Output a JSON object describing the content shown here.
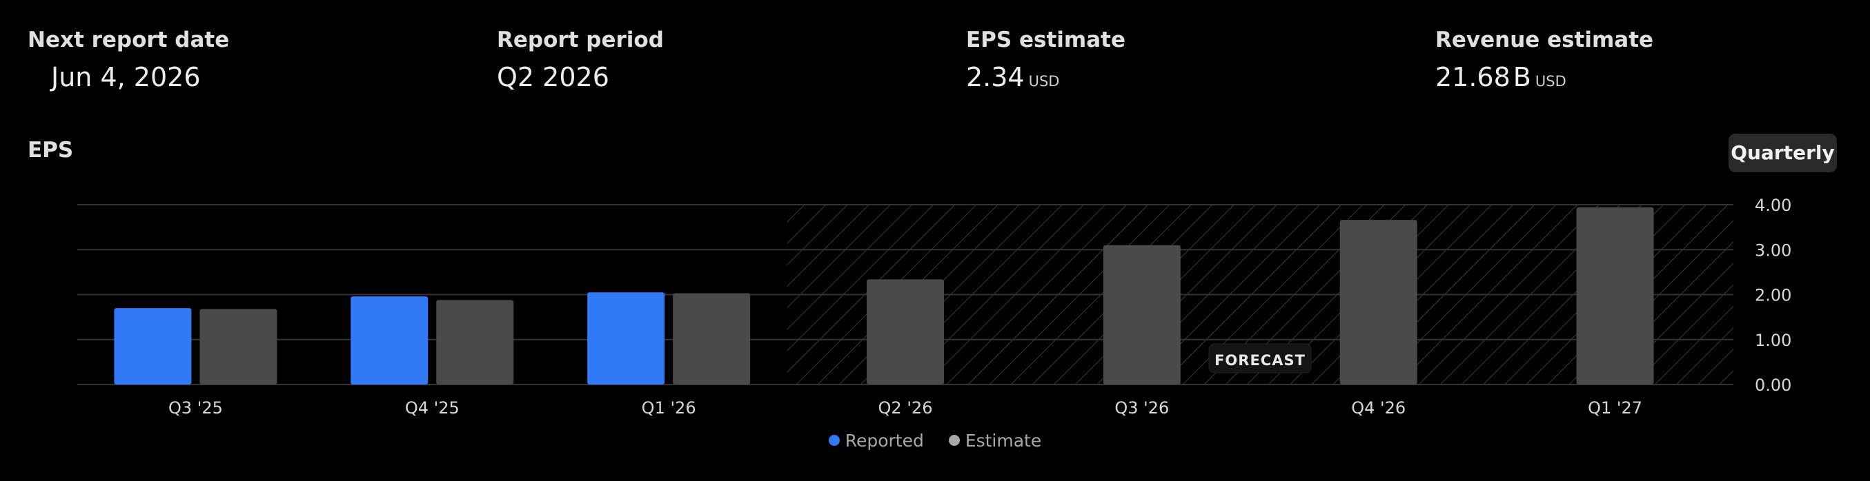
{
  "stats": [
    {
      "label": "Next report date",
      "value": "Jun 4, 2026"
    },
    {
      "label": "Report period",
      "value": "Q2 2026"
    },
    {
      "label": "EPS estimate",
      "value": "2.34",
      "unit": "USD"
    },
    {
      "label": "Revenue estimate",
      "value": "21.68",
      "suffix": "B",
      "unit": "USD"
    }
  ],
  "section_title": "EPS",
  "period_button": "Quarterly",
  "forecast_label": "FORECAST",
  "colors": {
    "reported": "#3179f5",
    "estimate": "#4a4a4a",
    "grid": "#333333",
    "hatch": "#3a3a3a"
  },
  "chart_data": {
    "type": "bar",
    "categories": [
      "Q3 '25",
      "Q4 '25",
      "Q1 '26",
      "Q2 '26",
      "Q3 '26",
      "Q4 '26",
      "Q1 '27"
    ],
    "series": [
      {
        "name": "Reported",
        "values": [
          1.7,
          1.96,
          2.05,
          null,
          null,
          null,
          null
        ]
      },
      {
        "name": "Estimate",
        "values": [
          1.68,
          1.88,
          2.03,
          2.34,
          3.1,
          3.66,
          3.94
        ]
      }
    ],
    "forecast_start_index": 3,
    "yticks": [
      "0.00",
      "1.00",
      "2.00",
      "3.00",
      "4.00"
    ],
    "ylim": [
      0,
      4
    ],
    "grid": true,
    "legend_position": "bottom-center"
  }
}
